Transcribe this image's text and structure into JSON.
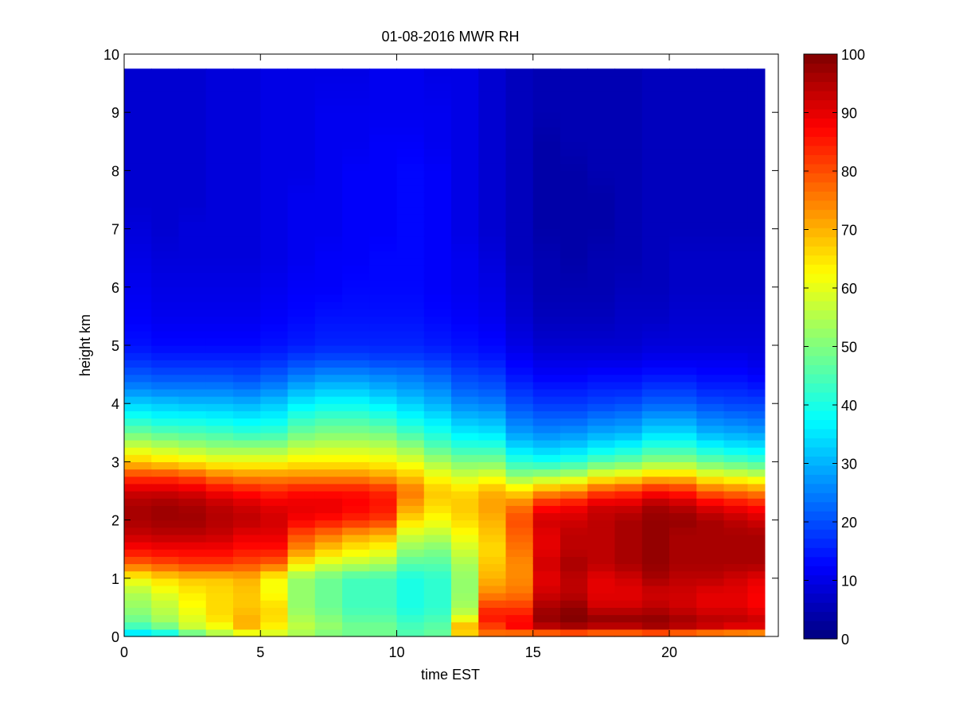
{
  "chart_data": {
    "type": "heatmap",
    "title": "01-08-2016 MWR RH",
    "xlabel": "time EST",
    "ylabel": "height km",
    "xlim": [
      0,
      24
    ],
    "ylim": [
      0,
      10
    ],
    "x_ticks": [
      0,
      5,
      10,
      15,
      20
    ],
    "x_tick_labels": [
      "0",
      "5",
      "10",
      "15",
      "20"
    ],
    "y_ticks": [
      0,
      1,
      2,
      3,
      4,
      5,
      6,
      7,
      8,
      9,
      10
    ],
    "y_tick_labels": [
      "0",
      "1",
      "2",
      "3",
      "4",
      "5",
      "6",
      "7",
      "8",
      "9",
      "10"
    ],
    "colorbar": {
      "min": 0,
      "max": 100,
      "colormap": "jet",
      "ticks": [
        0,
        10,
        20,
        30,
        40,
        50,
        60,
        70,
        80,
        90,
        100
      ],
      "tick_labels": [
        "0",
        "10",
        "20",
        "30",
        "40",
        "50",
        "60",
        "70",
        "80",
        "90",
        "100"
      ]
    },
    "x_centers": [
      0.5,
      1.5,
      2.5,
      3.5,
      4.5,
      5.5,
      6.5,
      7.5,
      8.5,
      9.5,
      10.5,
      11.5,
      12.5,
      13.5,
      14.5,
      15.5,
      16.5,
      17.5,
      18.5,
      19.5,
      20.5,
      21.5,
      22.5,
      23.25
    ],
    "x_edges_start": 0,
    "x_edges_end": 23.5,
    "y_top": 9.75,
    "y_profile_heights_km": [
      0.0,
      0.1,
      0.2,
      0.35,
      0.5,
      0.75,
      1.0,
      1.25,
      1.5,
      1.75,
      2.0,
      2.25,
      2.5,
      2.75,
      3.0,
      3.25,
      3.5,
      3.75,
      4.0,
      4.25,
      4.5,
      4.75,
      5.0,
      5.5,
      6.0,
      6.5,
      7.0,
      7.5,
      8.0,
      8.5,
      9.0,
      9.75
    ],
    "rh_profiles_percent": [
      [
        30,
        40,
        45,
        50,
        52,
        55,
        62,
        78,
        87,
        93,
        96,
        96,
        92,
        82,
        68,
        58,
        48,
        40,
        33,
        26,
        21,
        17,
        14,
        12,
        11,
        10,
        9,
        8,
        8,
        8,
        8,
        8
      ],
      [
        32,
        45,
        50,
        55,
        56,
        60,
        66,
        80,
        88,
        94,
        97,
        97,
        92,
        82,
        66,
        56,
        46,
        38,
        32,
        25,
        20,
        16,
        13,
        11,
        10,
        9,
        8,
        8,
        8,
        8,
        8,
        8
      ],
      [
        40,
        55,
        58,
        60,
        62,
        64,
        68,
        82,
        88,
        94,
        97,
        96,
        91,
        80,
        64,
        54,
        45,
        38,
        31,
        25,
        20,
        16,
        13,
        11,
        10,
        9,
        9,
        8,
        8,
        8,
        8,
        8
      ],
      [
        48,
        60,
        62,
        66,
        66,
        66,
        68,
        82,
        88,
        93,
        95,
        94,
        88,
        76,
        62,
        52,
        44,
        37,
        31,
        25,
        20,
        16,
        13,
        11,
        10,
        9,
        9,
        9,
        9,
        9,
        9,
        9
      ],
      [
        50,
        68,
        70,
        70,
        68,
        68,
        70,
        80,
        86,
        90,
        94,
        92,
        86,
        74,
        62,
        52,
        42,
        36,
        30,
        24,
        19,
        16,
        13,
        11,
        10,
        9,
        9,
        9,
        9,
        9,
        9,
        9
      ],
      [
        55,
        62,
        64,
        66,
        66,
        62,
        62,
        78,
        86,
        90,
        92,
        90,
        84,
        74,
        62,
        52,
        43,
        37,
        32,
        26,
        21,
        17,
        14,
        12,
        11,
        10,
        10,
        10,
        10,
        10,
        10,
        10
      ],
      [
        52,
        56,
        56,
        54,
        52,
        52,
        52,
        64,
        74,
        80,
        88,
        90,
        86,
        74,
        64,
        56,
        48,
        42,
        36,
        30,
        24,
        19,
        15,
        13,
        12,
        11,
        11,
        11,
        10,
        10,
        10,
        10
      ],
      [
        48,
        52,
        52,
        50,
        48,
        48,
        48,
        58,
        68,
        76,
        86,
        90,
        86,
        74,
        64,
        57,
        50,
        44,
        38,
        32,
        26,
        20,
        16,
        14,
        12,
        12,
        11,
        11,
        11,
        11,
        11,
        10
      ],
      [
        46,
        50,
        48,
        46,
        44,
        44,
        44,
        56,
        64,
        72,
        84,
        88,
        86,
        74,
        64,
        57,
        50,
        44,
        38,
        32,
        26,
        20,
        16,
        14,
        13,
        12,
        12,
        12,
        12,
        11,
        11,
        10
      ],
      [
        46,
        50,
        48,
        46,
        44,
        44,
        44,
        54,
        62,
        70,
        82,
        86,
        84,
        72,
        63,
        56,
        49,
        42,
        36,
        30,
        25,
        19,
        16,
        14,
        13,
        13,
        12,
        12,
        12,
        12,
        11,
        11
      ],
      [
        44,
        46,
        44,
        42,
        40,
        40,
        40,
        46,
        52,
        58,
        66,
        72,
        76,
        68,
        60,
        52,
        44,
        38,
        33,
        28,
        24,
        19,
        16,
        14,
        13,
        13,
        13,
        13,
        13,
        12,
        11,
        11
      ],
      [
        46,
        48,
        46,
        44,
        42,
        42,
        42,
        46,
        50,
        56,
        62,
        66,
        68,
        62,
        54,
        46,
        40,
        35,
        30,
        26,
        22,
        18,
        15,
        13,
        12,
        12,
        12,
        12,
        12,
        11,
        11,
        10
      ],
      [
        62,
        70,
        68,
        58,
        54,
        52,
        52,
        54,
        58,
        62,
        66,
        68,
        66,
        58,
        50,
        42,
        36,
        31,
        26,
        22,
        19,
        16,
        14,
        12,
        11,
        11,
        10,
        10,
        10,
        10,
        10,
        10
      ],
      [
        72,
        80,
        82,
        86,
        82,
        74,
        70,
        68,
        66,
        68,
        70,
        72,
        70,
        60,
        50,
        42,
        35,
        30,
        25,
        21,
        18,
        15,
        13,
        11,
        10,
        9,
        8,
        8,
        8,
        8,
        8,
        8
      ],
      [
        70,
        82,
        88,
        86,
        82,
        76,
        74,
        74,
        76,
        78,
        80,
        76,
        66,
        52,
        42,
        34,
        28,
        24,
        20,
        17,
        14,
        12,
        10,
        8,
        7,
        6,
        6,
        6,
        6,
        6,
        6,
        6
      ],
      [
        70,
        84,
        96,
        98,
        96,
        92,
        90,
        92,
        90,
        90,
        92,
        86,
        72,
        54,
        40,
        32,
        26,
        22,
        18,
        15,
        12,
        10,
        8,
        6,
        5,
        5,
        4,
        4,
        4,
        4,
        5,
        5
      ],
      [
        72,
        86,
        98,
        100,
        98,
        94,
        94,
        96,
        94,
        94,
        92,
        88,
        74,
        56,
        42,
        33,
        27,
        22,
        18,
        15,
        12,
        10,
        8,
        6,
        5,
        4,
        4,
        4,
        4,
        5,
        5,
        5
      ],
      [
        70,
        84,
        96,
        98,
        92,
        90,
        90,
        94,
        94,
        94,
        94,
        92,
        80,
        62,
        46,
        36,
        29,
        24,
        19,
        16,
        13,
        10,
        8,
        6,
        5,
        5,
        4,
        4,
        5,
        5,
        5,
        5
      ],
      [
        70,
        84,
        96,
        98,
        92,
        90,
        92,
        96,
        96,
        96,
        96,
        92,
        82,
        64,
        48,
        38,
        30,
        25,
        20,
        16,
        13,
        10,
        8,
        7,
        6,
        5,
        5,
        5,
        5,
        5,
        5,
        5
      ],
      [
        72,
        86,
        98,
        98,
        94,
        92,
        96,
        98,
        98,
        98,
        98,
        96,
        86,
        68,
        52,
        42,
        34,
        28,
        22,
        18,
        14,
        11,
        9,
        7,
        6,
        6,
        6,
        6,
        6,
        6,
        6,
        6
      ],
      [
        70,
        84,
        96,
        96,
        92,
        92,
        94,
        96,
        96,
        96,
        98,
        94,
        84,
        68,
        52,
        42,
        34,
        28,
        22,
        18,
        14,
        11,
        9,
        8,
        7,
        7,
        6,
        6,
        6,
        6,
        6,
        6
      ],
      [
        68,
        82,
        94,
        94,
        90,
        90,
        94,
        96,
        96,
        96,
        96,
        90,
        78,
        62,
        48,
        38,
        30,
        25,
        20,
        16,
        13,
        11,
        9,
        8,
        7,
        7,
        6,
        6,
        6,
        6,
        6,
        6
      ],
      [
        68,
        80,
        92,
        94,
        90,
        90,
        92,
        96,
        96,
        96,
        94,
        88,
        76,
        60,
        46,
        36,
        29,
        24,
        19,
        16,
        13,
        11,
        9,
        8,
        7,
        7,
        6,
        6,
        6,
        6,
        6,
        6
      ],
      [
        66,
        80,
        92,
        92,
        88,
        88,
        90,
        96,
        96,
        96,
        92,
        86,
        74,
        58,
        44,
        35,
        28,
        23,
        19,
        15,
        12,
        10,
        9,
        8,
        7,
        7,
        6,
        6,
        6,
        6,
        6,
        6
      ]
    ]
  }
}
